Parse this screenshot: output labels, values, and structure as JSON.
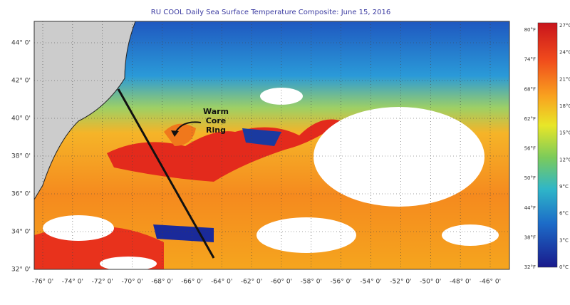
{
  "title": "RU COOL Daily Sea Surface Temperature Composite: June 15, 2016",
  "latitude_labels": [
    "44° 0'",
    "42° 0'",
    "40° 0'",
    "38° 0'",
    "36° 0'",
    "34° 0'",
    "32° 0'"
  ],
  "longitude_labels": [
    "-76° 0'",
    "-74° 0'",
    "-72° 0'",
    "-70° 0'",
    "-68° 0'",
    "-66° 0'",
    "-64° 0'",
    "-62° 0'",
    "-60° 0'",
    "-58° 0'",
    "-56° 0'",
    "-54° 0'",
    "-52° 0'",
    "-50° 0'",
    "-48° 0'",
    "-46° 0'"
  ],
  "annotation": [
    "Warm",
    "Core",
    "Ring"
  ],
  "colorbar": {
    "fahrenheit_labels": [
      "80°F",
      "74°F",
      "68°F",
      "62°F",
      "56°F",
      "50°F",
      "44°F",
      "38°F",
      "32°F"
    ],
    "celsius_labels": [
      "27°C",
      "24°C",
      "21°C",
      "18°C",
      "15°C",
      "12°C",
      "9°C",
      "6°C",
      "3°C",
      "0°C"
    ]
  }
}
